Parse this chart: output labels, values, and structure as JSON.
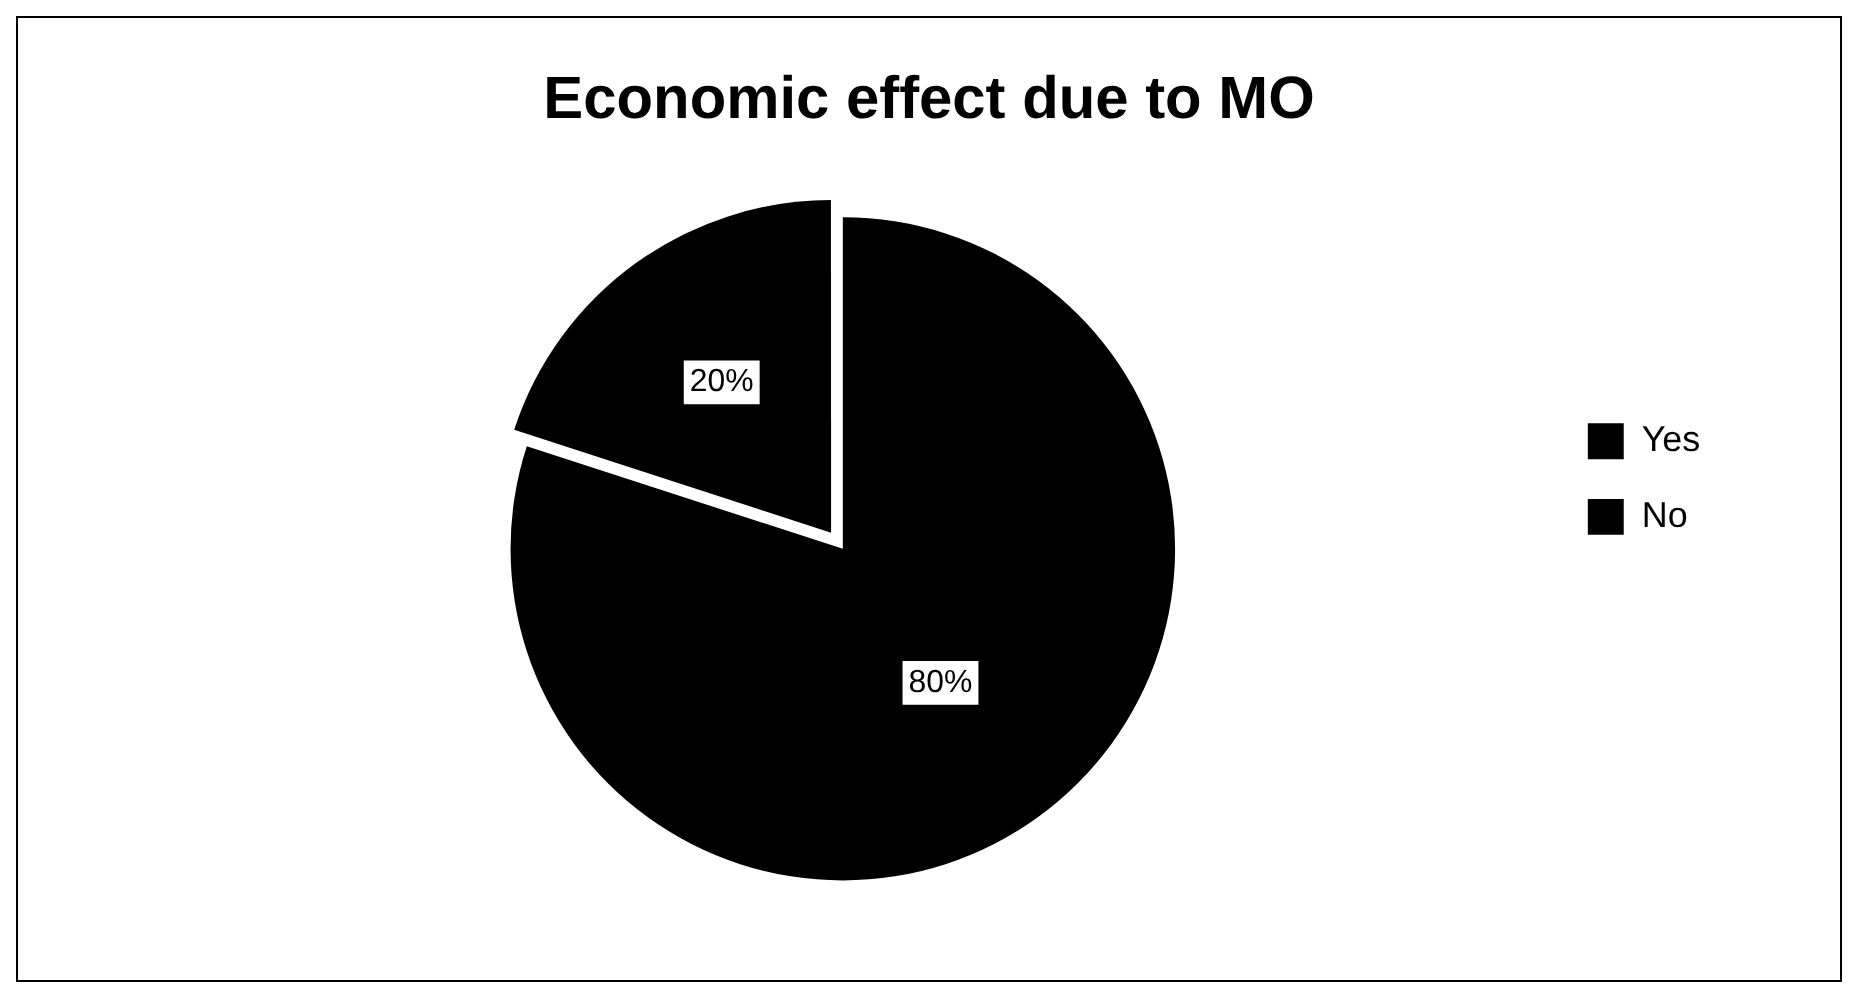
{
  "chart_data": {
    "type": "pie",
    "title": "Economic effect due to MO",
    "categories": [
      "Yes",
      "No"
    ],
    "values": [
      80,
      20
    ],
    "colors": [
      "#000000",
      "#000000"
    ],
    "value_labels": [
      "80%",
      "20%"
    ],
    "legend": "right"
  }
}
